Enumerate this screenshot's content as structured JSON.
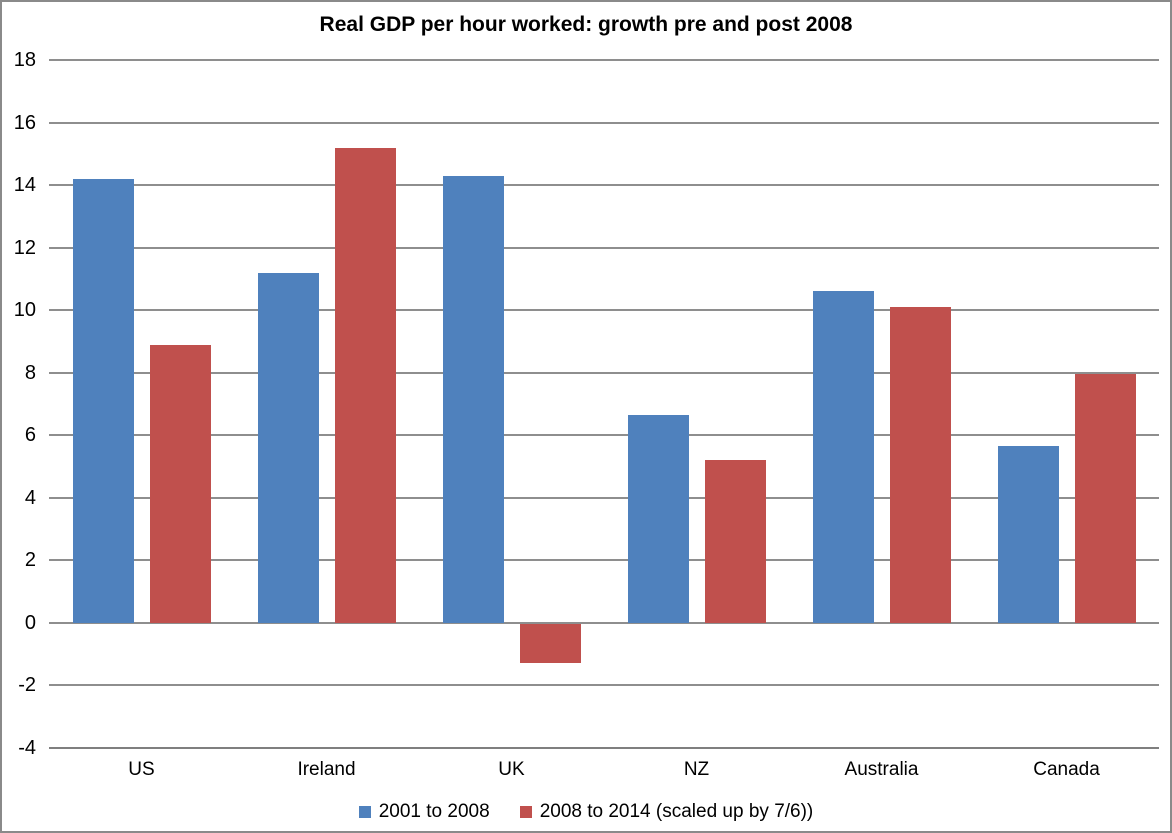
{
  "chart_data": {
    "type": "bar",
    "title": "Real GDP per hour worked: growth pre and post 2008",
    "xlabel": "",
    "ylabel": "",
    "categories": [
      "US",
      "Ireland",
      "UK",
      "NZ",
      "Australia",
      "Canada"
    ],
    "series": [
      {
        "name": "2001 to 2008",
        "color": "#4F81BD",
        "values": [
          14.2,
          11.2,
          14.3,
          6.65,
          10.6,
          5.65
        ]
      },
      {
        "name": "2008 to 2014 (scaled up by 7/6))",
        "color": "#C0504D",
        "values": [
          8.9,
          15.2,
          -1.25,
          5.2,
          10.1,
          7.95
        ]
      }
    ],
    "ylim": [
      -4,
      18
    ],
    "ytick_step": 2,
    "yticks": [
      18,
      16,
      14,
      12,
      10,
      8,
      6,
      4,
      2,
      0,
      -2,
      -4
    ],
    "grid": "horizontal",
    "legend_position": "bottom",
    "colors": {
      "gridline": "#8e8e8e",
      "axis_line": "#7f7f7f",
      "border": "#8a8a8a",
      "text": "#000000",
      "background": "#ffffff"
    }
  }
}
